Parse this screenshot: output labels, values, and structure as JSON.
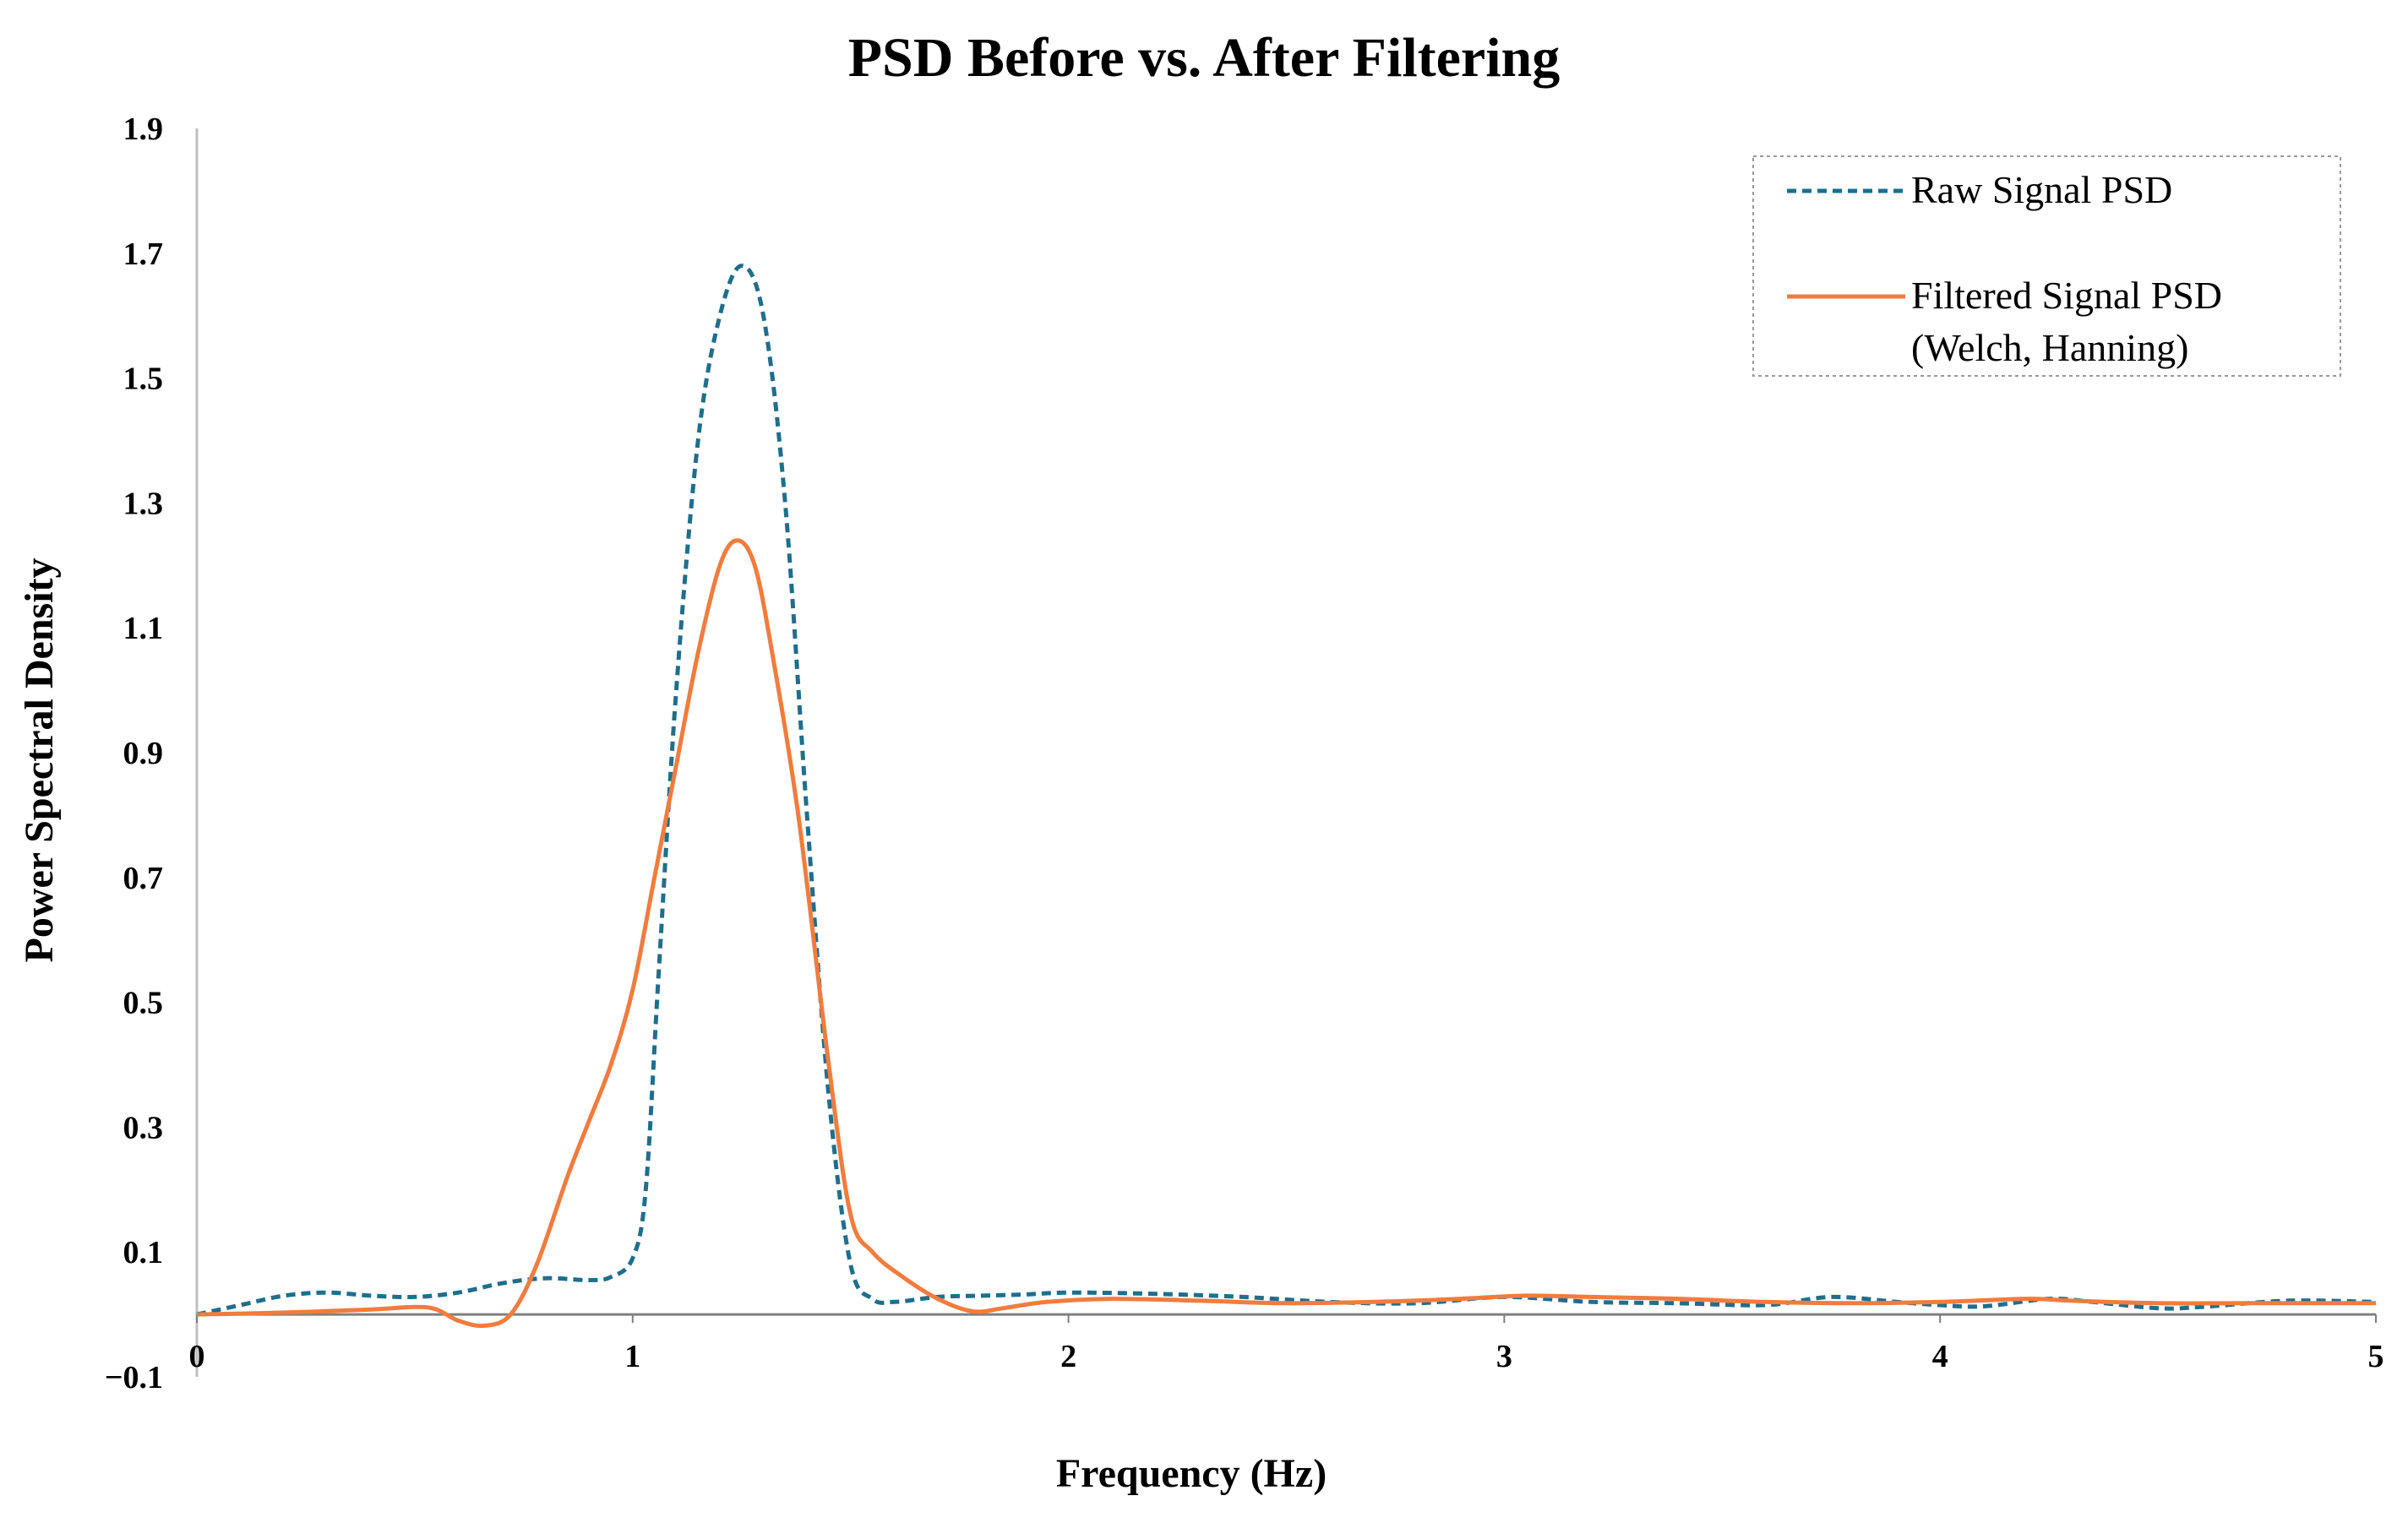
{
  "chart_data": {
    "type": "line",
    "title": "PSD Before vs. After Filtering",
    "xlabel": "Frequency (Hz)",
    "ylabel": "Power Spectral Density",
    "xlim": [
      0,
      5
    ],
    "ylim": [
      -0.1,
      1.9
    ],
    "x_ticks": [
      "0",
      "1",
      "2",
      "3",
      "4",
      "5"
    ],
    "y_ticks": [
      "1.9",
      "1.7",
      "1.5",
      "1.3",
      "1.1",
      "0.9",
      "0.7",
      "0.5",
      "0.3",
      "0.1",
      "−0.1"
    ],
    "y_tick_values": [
      1.9,
      1.7,
      1.5,
      1.3,
      1.1,
      0.9,
      0.7,
      0.5,
      0.3,
      0.1,
      -0.1
    ],
    "grid": false,
    "legend_position": "top-right",
    "series": [
      {
        "name": "Raw Signal PSD",
        "color": "#1f6e8c",
        "style": "dashed",
        "points": [
          [
            0.0,
            0.0
          ],
          [
            0.1,
            0.015
          ],
          [
            0.2,
            0.03
          ],
          [
            0.3,
            0.035
          ],
          [
            0.4,
            0.03
          ],
          [
            0.5,
            0.028
          ],
          [
            0.6,
            0.035
          ],
          [
            0.7,
            0.05
          ],
          [
            0.8,
            0.058
          ],
          [
            0.9,
            0.055
          ],
          [
            0.95,
            0.06
          ],
          [
            1.0,
            0.09
          ],
          [
            1.03,
            0.2
          ],
          [
            1.06,
            0.55
          ],
          [
            1.1,
            1.0
          ],
          [
            1.15,
            1.4
          ],
          [
            1.2,
            1.6
          ],
          [
            1.25,
            1.68
          ],
          [
            1.3,
            1.6
          ],
          [
            1.35,
            1.3
          ],
          [
            1.4,
            0.8
          ],
          [
            1.45,
            0.35
          ],
          [
            1.5,
            0.08
          ],
          [
            1.55,
            0.025
          ],
          [
            1.6,
            0.02
          ],
          [
            1.7,
            0.028
          ],
          [
            1.8,
            0.03
          ],
          [
            1.9,
            0.032
          ],
          [
            2.0,
            0.035
          ],
          [
            2.2,
            0.033
          ],
          [
            2.4,
            0.028
          ],
          [
            2.6,
            0.02
          ],
          [
            2.8,
            0.018
          ],
          [
            3.0,
            0.028
          ],
          [
            3.2,
            0.02
          ],
          [
            3.4,
            0.018
          ],
          [
            3.6,
            0.015
          ],
          [
            3.75,
            0.028
          ],
          [
            3.9,
            0.02
          ],
          [
            4.0,
            0.015
          ],
          [
            4.1,
            0.013
          ],
          [
            4.25,
            0.025
          ],
          [
            4.35,
            0.02
          ],
          [
            4.5,
            0.01
          ],
          [
            4.6,
            0.012
          ],
          [
            4.8,
            0.022
          ],
          [
            5.0,
            0.02
          ]
        ]
      },
      {
        "name": "Filtered Signal PSD (Welch, Hanning)",
        "color": "#f07c3e",
        "style": "solid",
        "points": [
          [
            0.0,
            0.0
          ],
          [
            0.2,
            0.003
          ],
          [
            0.4,
            0.008
          ],
          [
            0.5,
            0.012
          ],
          [
            0.55,
            0.008
          ],
          [
            0.6,
            -0.01
          ],
          [
            0.66,
            -0.018
          ],
          [
            0.72,
            0.0
          ],
          [
            0.78,
            0.08
          ],
          [
            0.85,
            0.22
          ],
          [
            0.9,
            0.31
          ],
          [
            0.95,
            0.4
          ],
          [
            1.0,
            0.52
          ],
          [
            1.05,
            0.7
          ],
          [
            1.1,
            0.88
          ],
          [
            1.15,
            1.06
          ],
          [
            1.2,
            1.2
          ],
          [
            1.24,
            1.24
          ],
          [
            1.28,
            1.2
          ],
          [
            1.32,
            1.06
          ],
          [
            1.38,
            0.8
          ],
          [
            1.45,
            0.4
          ],
          [
            1.5,
            0.16
          ],
          [
            1.55,
            0.1
          ],
          [
            1.62,
            0.06
          ],
          [
            1.7,
            0.025
          ],
          [
            1.78,
            0.005
          ],
          [
            1.85,
            0.01
          ],
          [
            1.95,
            0.02
          ],
          [
            2.1,
            0.025
          ],
          [
            2.3,
            0.022
          ],
          [
            2.5,
            0.018
          ],
          [
            2.7,
            0.02
          ],
          [
            2.9,
            0.025
          ],
          [
            3.05,
            0.03
          ],
          [
            3.2,
            0.028
          ],
          [
            3.4,
            0.025
          ],
          [
            3.6,
            0.02
          ],
          [
            3.8,
            0.018
          ],
          [
            4.0,
            0.02
          ],
          [
            4.2,
            0.025
          ],
          [
            4.3,
            0.022
          ],
          [
            4.5,
            0.018
          ],
          [
            4.7,
            0.018
          ],
          [
            5.0,
            0.018
          ]
        ]
      }
    ],
    "legend_entries": [
      {
        "lines": [
          "Raw Signal PSD"
        ]
      },
      {
        "lines": [
          "Filtered Signal PSD",
          "(Welch, Hanning)"
        ]
      }
    ]
  }
}
